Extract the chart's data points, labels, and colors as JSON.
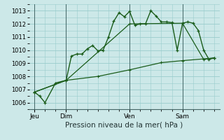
{
  "background_color": "#cce8e8",
  "grid_color": "#99cccc",
  "line_color": "#1a5c1a",
  "title": "Pression niveau de la mer( hPa )",
  "ylim": [
    1005.5,
    1013.5
  ],
  "yticks": [
    1006,
    1007,
    1008,
    1009,
    1010,
    1011,
    1012,
    1013
  ],
  "day_labels": [
    "Jeu",
    "Dim",
    "Ven",
    "Sam"
  ],
  "day_positions": [
    0,
    24,
    72,
    112
  ],
  "xlim": [
    -4,
    140
  ],
  "series1_x": [
    0,
    4,
    8,
    16,
    24,
    28,
    32,
    36,
    40,
    44,
    48,
    52,
    56,
    60,
    64,
    68,
    72,
    76,
    80,
    84,
    88,
    92,
    96,
    100,
    104,
    108,
    112,
    116,
    120,
    124,
    128,
    132,
    136
  ],
  "series1_y": [
    1006.8,
    1006.5,
    1006.0,
    1007.5,
    1007.7,
    1009.55,
    1009.7,
    1009.7,
    1010.1,
    1010.35,
    1009.95,
    1010.0,
    1011.0,
    1012.2,
    1012.85,
    1012.55,
    1012.95,
    1011.9,
    1012.0,
    1012.0,
    1013.0,
    1012.6,
    1012.15,
    1012.15,
    1012.1,
    1010.0,
    1012.05,
    1012.15,
    1012.05,
    1011.5,
    1010.0,
    1009.3,
    1009.4
  ],
  "series2_x": [
    0,
    24,
    48,
    72,
    96,
    112,
    136
  ],
  "series2_y": [
    1006.8,
    1007.7,
    1008.0,
    1008.5,
    1009.05,
    1009.2,
    1009.4
  ],
  "series3_x": [
    0,
    24,
    72,
    112,
    128,
    136
  ],
  "series3_y": [
    1006.8,
    1007.7,
    1012.0,
    1012.05,
    1009.3,
    1009.4
  ]
}
